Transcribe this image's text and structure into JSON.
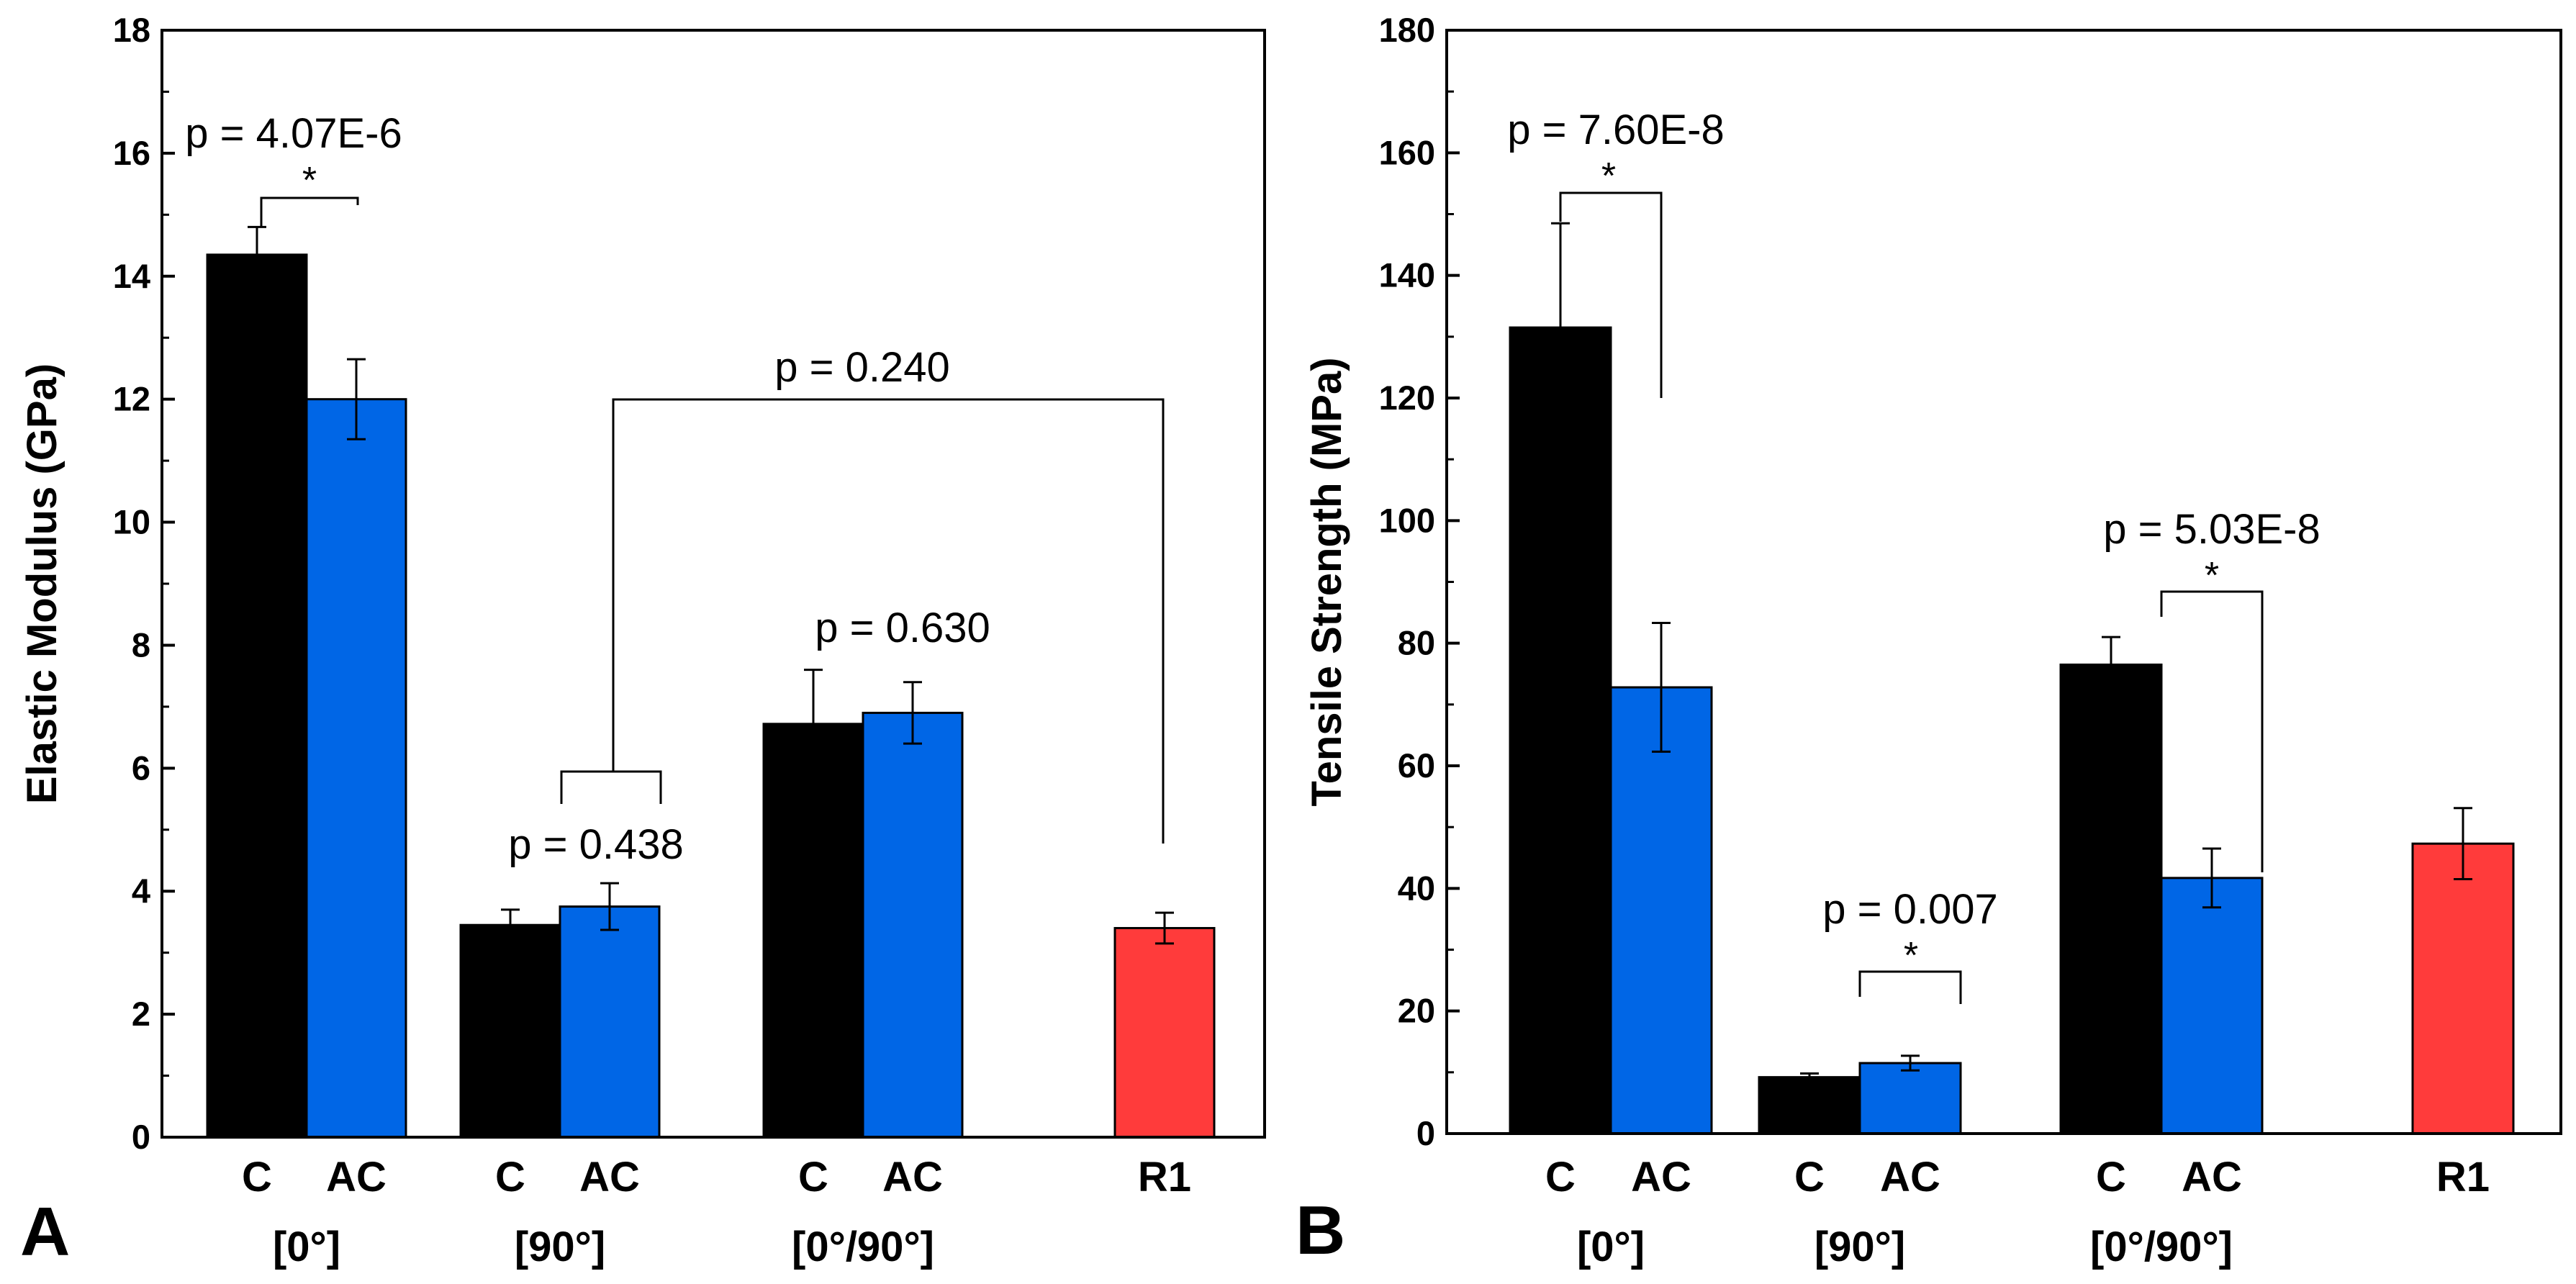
{
  "chart_data": [
    {
      "type": "bar",
      "panel_label": "A",
      "ylabel": "Elastic Modulus (GPa)",
      "xlabel": "",
      "ylim": [
        0,
        18
      ],
      "yticks": [
        0,
        2,
        4,
        6,
        8,
        10,
        12,
        14,
        16,
        18
      ],
      "grid": false,
      "groups": [
        "[0°]",
        "[90°]",
        "[0°/90°]",
        ""
      ],
      "series": [
        {
          "name": "C",
          "color": "#000000",
          "values": [
            14.35,
            3.45,
            6.72,
            null
          ],
          "errors": [
            0.45,
            0.25,
            0.88,
            null
          ]
        },
        {
          "name": "AC",
          "color": "#0066e6",
          "values": [
            12.0,
            3.75,
            6.9,
            null
          ],
          "errors": [
            0.65,
            0.38,
            0.5,
            null
          ]
        },
        {
          "name": "R1",
          "color": "#ff3b3b",
          "values": [
            null,
            null,
            null,
            3.4
          ],
          "errors": [
            null,
            null,
            null,
            0.25
          ]
        }
      ],
      "bar_labels": [
        [
          "C",
          "AC"
        ],
        [
          "C",
          "AC"
        ],
        [
          "C",
          "AC"
        ],
        [
          "R1"
        ]
      ],
      "annotations": [
        {
          "text": "p = 4.07E-6",
          "significant": true,
          "star": "*",
          "between": "C[0°] vs AC[0°]"
        },
        {
          "text": "p = 0.438",
          "significant": false,
          "star": "",
          "between": "C[90°] vs AC[90°]"
        },
        {
          "text": "p = 0.240",
          "significant": false,
          "star": "",
          "between": "[90°] vs R1"
        },
        {
          "text": "p = 0.630",
          "significant": false,
          "star": "",
          "between": "C[0°/90°] vs AC[0°/90°]"
        }
      ]
    },
    {
      "type": "bar",
      "panel_label": "B",
      "ylabel": "Tensile Strength (MPa)",
      "xlabel": "",
      "ylim": [
        0,
        180
      ],
      "yticks": [
        0,
        20,
        40,
        60,
        80,
        100,
        120,
        140,
        160,
        180
      ],
      "grid": false,
      "groups": [
        "[0°]",
        "[90°]",
        "[0°/90°]",
        ""
      ],
      "series": [
        {
          "name": "C",
          "color": "#000000",
          "values": [
            131.5,
            9.2,
            76.5,
            null
          ],
          "errors": [
            17.0,
            0.6,
            4.5,
            null
          ]
        },
        {
          "name": "AC",
          "color": "#0066e6",
          "values": [
            72.8,
            11.5,
            41.7,
            null
          ],
          "errors": [
            10.5,
            1.2,
            4.8,
            null
          ]
        },
        {
          "name": "R1",
          "color": "#ff3b3b",
          "values": [
            null,
            null,
            null,
            47.3
          ],
          "errors": [
            null,
            null,
            null,
            5.8
          ]
        }
      ],
      "bar_labels": [
        [
          "C",
          "AC"
        ],
        [
          "C",
          "AC"
        ],
        [
          "C",
          "AC"
        ],
        [
          "R1"
        ]
      ],
      "annotations": [
        {
          "text": "p = 7.60E-8",
          "significant": true,
          "star": "*",
          "between": "C[0°] vs AC[0°]"
        },
        {
          "text": "p = 0.007",
          "significant": true,
          "star": "*",
          "between": "C[90°] vs AC[90°]"
        },
        {
          "text": "p = 5.03E-8",
          "significant": true,
          "star": "*",
          "between": "C[0°/90°] vs AC[0°/90°]"
        }
      ]
    }
  ]
}
